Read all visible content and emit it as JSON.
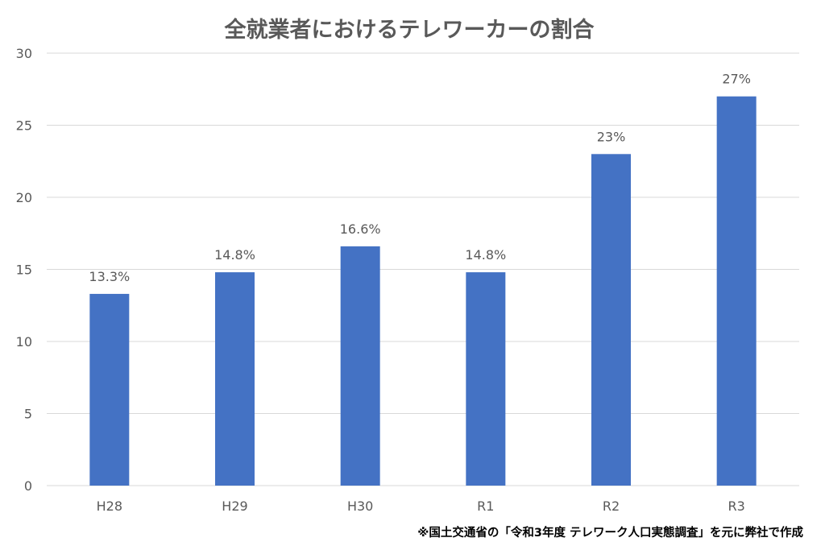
{
  "chart_data": {
    "type": "bar",
    "title": "全就業者におけるテレワーカーの割合",
    "categories": [
      "H28",
      "H29",
      "H30",
      "R1",
      "R2",
      "R3"
    ],
    "values": [
      13.3,
      14.8,
      16.6,
      14.8,
      23,
      27
    ],
    "data_labels": [
      "13.3%",
      "14.8%",
      "16.6%",
      "14.8%",
      "23%",
      "27%"
    ],
    "ylim": [
      0,
      30
    ],
    "yticks": [
      0,
      5,
      10,
      15,
      20,
      25,
      30
    ],
    "ytick_labels": [
      "0",
      "5",
      "10",
      "15",
      "20",
      "25",
      "30"
    ],
    "xlabel": "",
    "ylabel": "",
    "grid": true,
    "bar_color": "#4472C4",
    "grid_color": "#D9D9D9",
    "text_color": "#595959"
  },
  "footer": {
    "source_note": "※国土交通省の「令和3年度 テレワーク人口実態調査」を元に弊社で作成"
  }
}
